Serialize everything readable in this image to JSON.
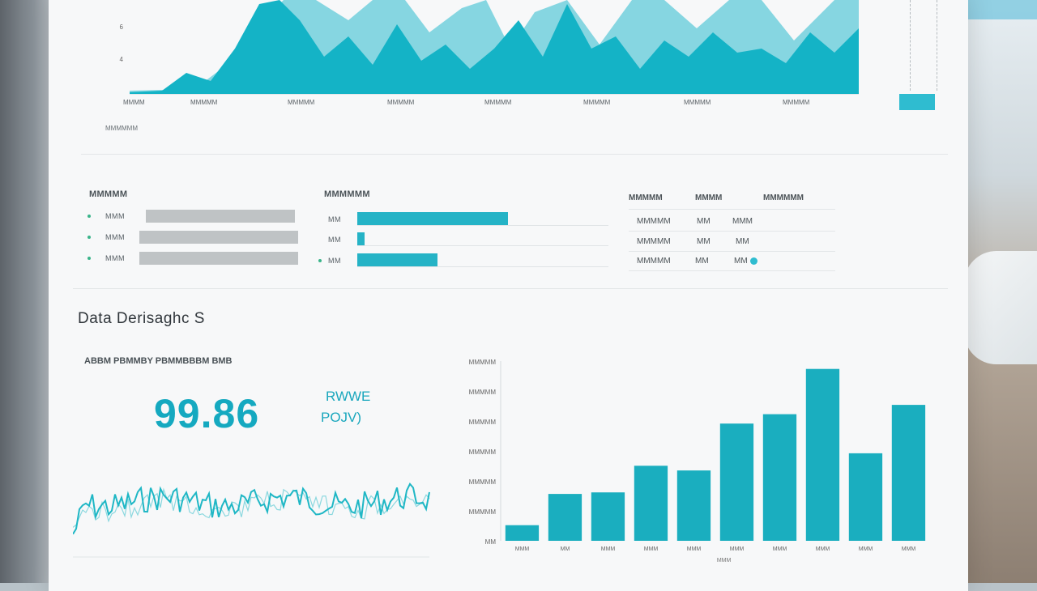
{
  "top_chart": {
    "x_ticks": [
      "MMMM",
      "MMMMM",
      "MMMMM",
      "MMMMM",
      "MMMMM",
      "MMMMM",
      "MMMMM",
      "MMMMM"
    ],
    "y_ticks": [
      "6",
      "4"
    ],
    "footer": "MMMMMM",
    "colors": {
      "front": "#14b3c6",
      "back": "#7ed4e0"
    }
  },
  "panels": {
    "left": {
      "title": "MMMMM",
      "rows": [
        {
          "label": "MMM",
          "value": 1.0
        },
        {
          "label": "MMM",
          "value": 1.0
        },
        {
          "label": "MMM",
          "value": 1.0
        }
      ]
    },
    "middle": {
      "title": "MMMMMM",
      "rows": [
        {
          "label": "MM",
          "value": 0.6
        },
        {
          "label": "MM",
          "value": 0.03
        },
        {
          "label": "MM",
          "value": 0.32
        }
      ]
    },
    "right": {
      "headers": [
        "MMMMM",
        "MMMM",
        "MMMMMM"
      ],
      "rows": [
        [
          "MMMMM",
          "MM",
          "MMM"
        ],
        [
          "MMMMM",
          "MM",
          "MM"
        ],
        [
          "MMMMM",
          "MM",
          "MM"
        ]
      ]
    }
  },
  "section": {
    "title": "Data Derisaghc S",
    "metric_label": "ABBM PBMMBY PBMMBBBM BMB",
    "metric_value": "99.86",
    "metric_sub1": "RWWE",
    "metric_sub2": "POJV)"
  },
  "bar_chart": {
    "type": "bar",
    "values": [
      10,
      30,
      31,
      48,
      45,
      75,
      81,
      110,
      56,
      87
    ],
    "ylim": [
      0,
      115
    ],
    "y_ticks": [
      "MMMMM",
      "MMMMM",
      "MMMMM",
      "MMMMM",
      "MMMMM",
      "MMMMM",
      "MM"
    ],
    "x_ticks": [
      "MMM",
      "MM",
      "MMM",
      "MMM",
      "MMM",
      "MMM",
      "MMM",
      "MMM",
      "MMM",
      "MMM"
    ],
    "x_label": "MMM",
    "color": "#1aaebf"
  },
  "sparkline": {
    "color": "#1fb7c5"
  }
}
